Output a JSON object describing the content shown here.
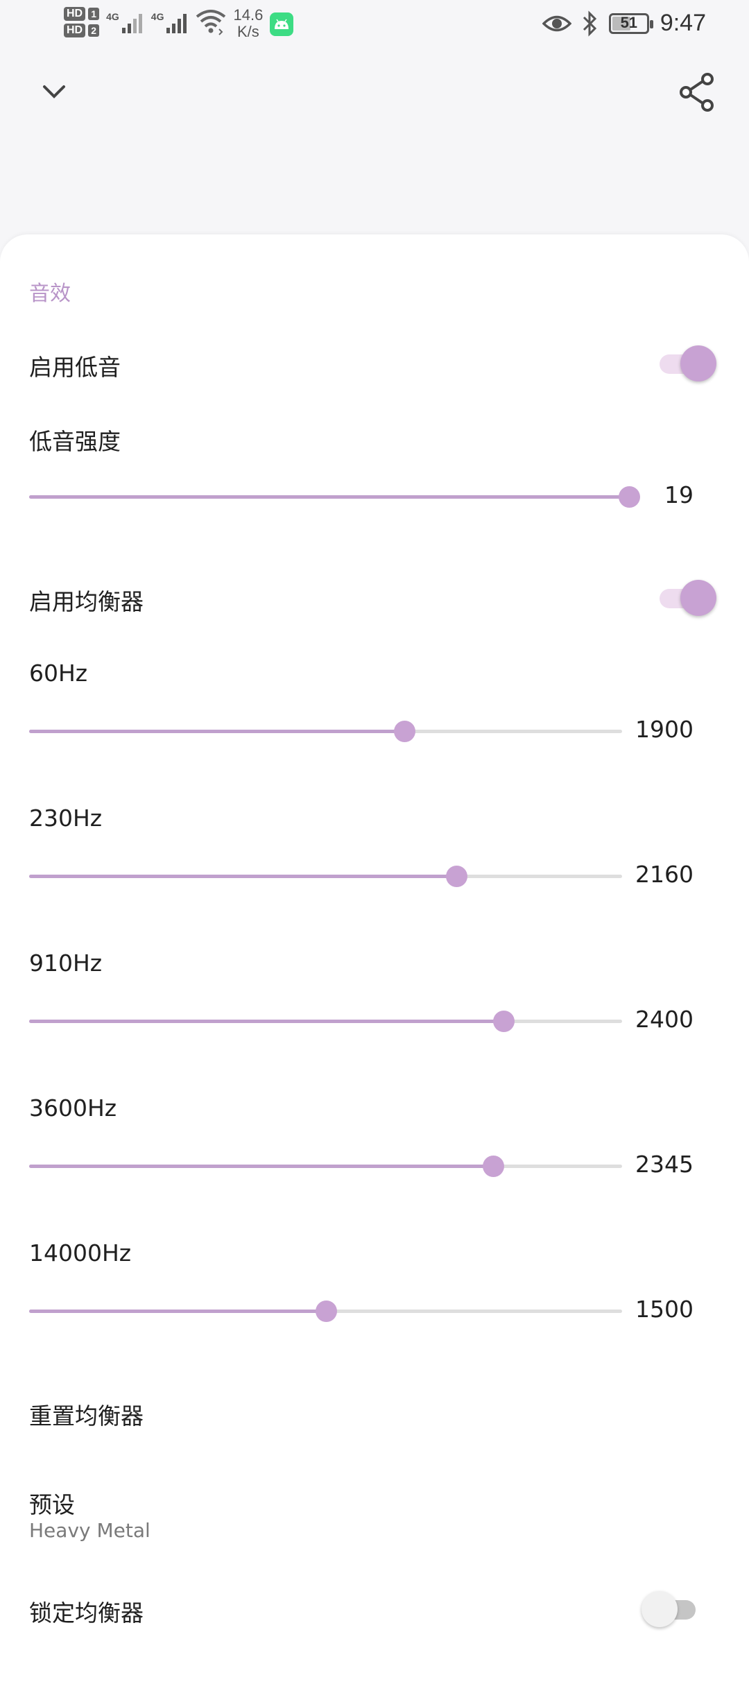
{
  "status_bar": {
    "hd1": "HD",
    "sim1": "1",
    "hd2": "HD",
    "sim2": "2",
    "net1": "4G",
    "net2": "4G",
    "speed_value": "14.6",
    "speed_unit": "K/s",
    "battery": "51",
    "time": "9:47"
  },
  "colors": {
    "accent": "#c8a2d3",
    "accent_track": "#eedcef",
    "section_title": "#b894c8"
  },
  "header": {
    "collapse_icon": "chevron-down-icon",
    "share_icon": "share-icon"
  },
  "sheet": {
    "section_title": "音效",
    "bass_enable": {
      "label": "启用低音",
      "on": true
    },
    "bass_strength": {
      "label": "低音强度",
      "value": "19",
      "fraction": 1.0
    },
    "eq_enable": {
      "label": "启用均衡器",
      "on": true
    },
    "bands": [
      {
        "label": "60Hz",
        "value": "1900",
        "fraction": 0.633
      },
      {
        "label": "230Hz",
        "value": "2160",
        "fraction": 0.72
      },
      {
        "label": "910Hz",
        "value": "2400",
        "fraction": 0.8
      },
      {
        "label": "3600Hz",
        "value": "2345",
        "fraction": 0.782
      },
      {
        "label": "14000Hz",
        "value": "1500",
        "fraction": 0.5
      }
    ],
    "reset_eq": {
      "label": "重置均衡器"
    },
    "preset": {
      "label": "预设",
      "value": "Heavy Metal"
    },
    "lock_eq": {
      "label": "锁定均衡器",
      "on": false
    }
  }
}
